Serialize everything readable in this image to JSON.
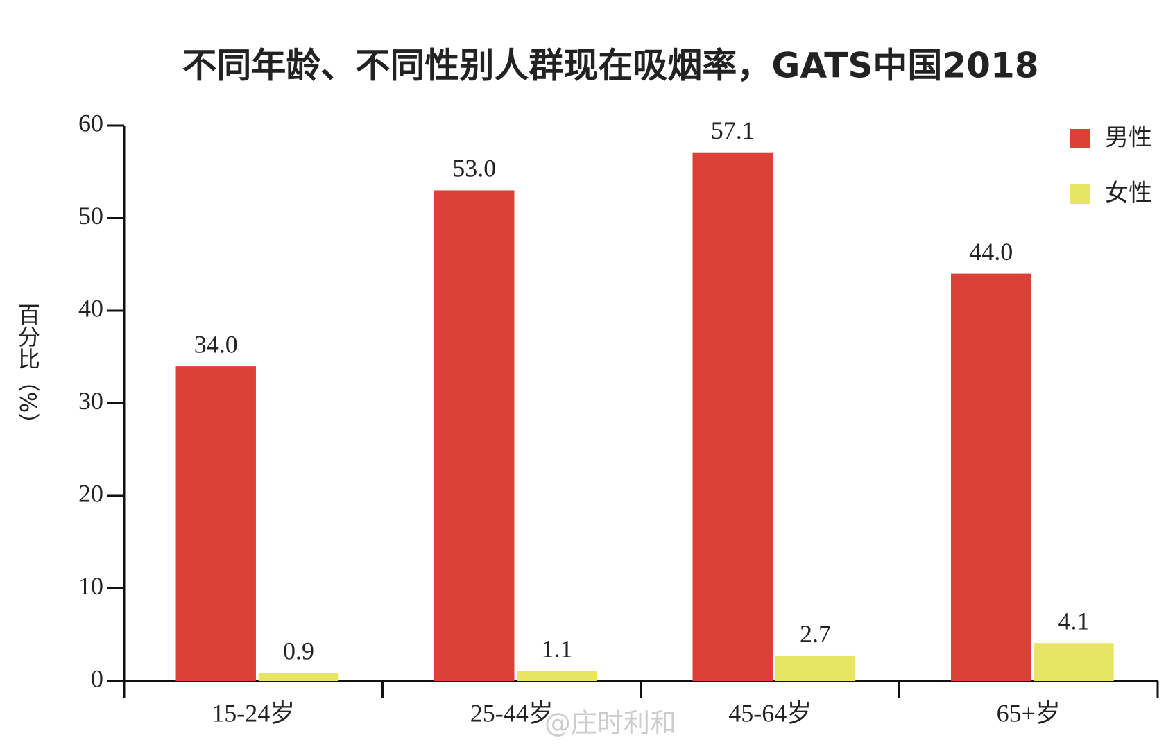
{
  "chart_data": {
    "type": "bar",
    "title": "不同年龄、不同性别人群现在吸烟率，GATS中国2018",
    "y_label": "百分比（%）",
    "categories": [
      "15-24岁",
      "25-44岁",
      "45-64岁",
      "65+岁"
    ],
    "series": [
      {
        "name": "男性",
        "color": "#dc4137",
        "values": [
          34.0,
          53.0,
          57.1,
          44.0
        ],
        "value_labels": [
          "34.0",
          "53.0",
          "57.1",
          "44.0"
        ]
      },
      {
        "name": "女性",
        "color": "#e8e464",
        "values": [
          0.9,
          1.1,
          2.7,
          4.1
        ],
        "value_labels": [
          "0.9",
          "1.1",
          "2.7",
          "4.1"
        ]
      }
    ],
    "ylim": [
      0,
      60
    ],
    "yticks": [
      0,
      10,
      20,
      30,
      40,
      50,
      60
    ],
    "legend": "upper right",
    "watermark": "@庄时利和"
  }
}
